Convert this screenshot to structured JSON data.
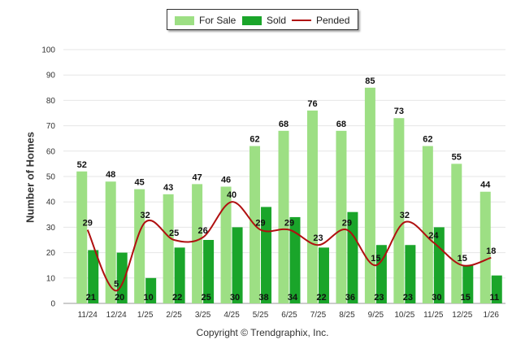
{
  "chart_data": {
    "type": "bar",
    "categories": [
      "11/24",
      "12/24",
      "1/25",
      "2/25",
      "3/25",
      "4/25",
      "5/25",
      "6/25",
      "7/25",
      "8/25",
      "9/25",
      "10/25",
      "11/25",
      "12/25",
      "1/26"
    ],
    "series": [
      {
        "name": "For Sale",
        "type": "bar",
        "color": "#9ddf84",
        "values": [
          52,
          48,
          45,
          43,
          47,
          46,
          62,
          68,
          76,
          68,
          85,
          73,
          62,
          55,
          44
        ]
      },
      {
        "name": "Sold",
        "type": "bar",
        "color": "#1aa52a",
        "values": [
          21,
          20,
          10,
          22,
          25,
          30,
          38,
          34,
          22,
          36,
          23,
          23,
          30,
          15,
          11
        ]
      },
      {
        "name": "Pended",
        "type": "line",
        "color": "#b01010",
        "values": [
          29,
          5,
          32,
          25,
          26,
          40,
          29,
          29,
          23,
          29,
          15,
          32,
          24,
          15,
          18
        ]
      }
    ],
    "ylabel": "Number of Homes",
    "xlabel": "",
    "ylim": [
      0,
      100
    ],
    "yticks": [
      0,
      10,
      20,
      30,
      40,
      50,
      60,
      70,
      80,
      90,
      100
    ],
    "grid": true,
    "legend": "top-center"
  },
  "legend": {
    "for_sale": "For Sale",
    "sold": "Sold",
    "pended": "Pended"
  },
  "copyright": "Copyright © Trendgraphix, Inc."
}
